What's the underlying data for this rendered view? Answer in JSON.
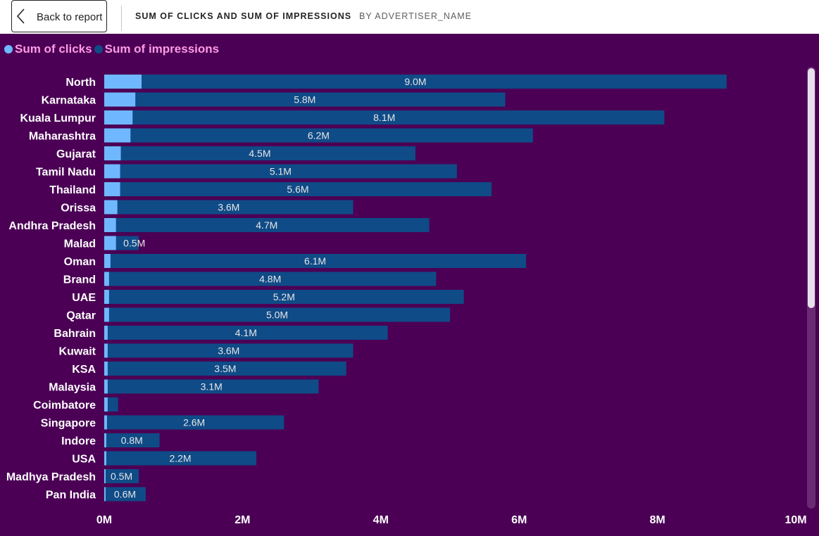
{
  "header": {
    "back_label": "Back to report",
    "title": "SUM OF CLICKS AND SUM OF IMPRESSIONS",
    "subtitle": "BY ADVERTISER_NAME"
  },
  "colors": {
    "background": "#4b0055",
    "clicks": "#6fb8ff",
    "impressions": "#0f4b87",
    "legend_text": "#ff9be6",
    "data_label": "#e6e6e6"
  },
  "chart_data": {
    "type": "bar",
    "orientation": "horizontal",
    "categories": [
      "North",
      "Karnataka",
      "Kuala Lumpur",
      "Maharashtra",
      "Gujarat",
      "Tamil Nadu",
      "Thailand",
      "Orissa",
      "Andhra Pradesh",
      "Malad",
      "Oman",
      "Brand",
      "UAE",
      "Qatar",
      "Bahrain",
      "Kuwait",
      "KSA",
      "Malaysia",
      "Coimbatore",
      "Singapore",
      "Indore",
      "USA",
      "Madhya Pradesh",
      "Pan India"
    ],
    "series": [
      {
        "name": "Sum of clicks",
        "values": [
          0.54,
          0.45,
          0.41,
          0.38,
          0.24,
          0.23,
          0.23,
          0.19,
          0.17,
          0.17,
          0.09,
          0.07,
          0.07,
          0.07,
          0.05,
          0.05,
          0.05,
          0.05,
          0.05,
          0.04,
          0.03,
          0.03,
          0.02,
          0.02
        ]
      },
      {
        "name": "Sum of impressions",
        "values": [
          9.0,
          5.8,
          8.1,
          6.2,
          4.5,
          5.1,
          5.6,
          3.6,
          4.7,
          0.5,
          6.1,
          4.8,
          5.2,
          5.0,
          4.1,
          3.6,
          3.5,
          3.1,
          0.2,
          2.6,
          0.8,
          2.2,
          0.5,
          0.6
        ]
      }
    ],
    "data_labels": [
      "9.0M",
      "5.8M",
      "8.1M",
      "6.2M",
      "4.5M",
      "5.1M",
      "5.6M",
      "3.6M",
      "4.7M",
      "0.5M",
      "6.1M",
      "4.8M",
      "5.2M",
      "5.0M",
      "4.1M",
      "3.6M",
      "3.5M",
      "3.1M",
      "",
      "2.6M",
      "0.8M",
      "2.2M",
      "0.5M",
      "0.6M"
    ],
    "xlim": [
      0,
      10
    ],
    "x_ticks": [
      0,
      2,
      4,
      6,
      8,
      10
    ],
    "x_tick_labels": [
      "0M",
      "2M",
      "4M",
      "6M",
      "8M",
      "10M"
    ],
    "legend_position": "top-left",
    "grid": false,
    "xlabel": "",
    "ylabel": ""
  }
}
